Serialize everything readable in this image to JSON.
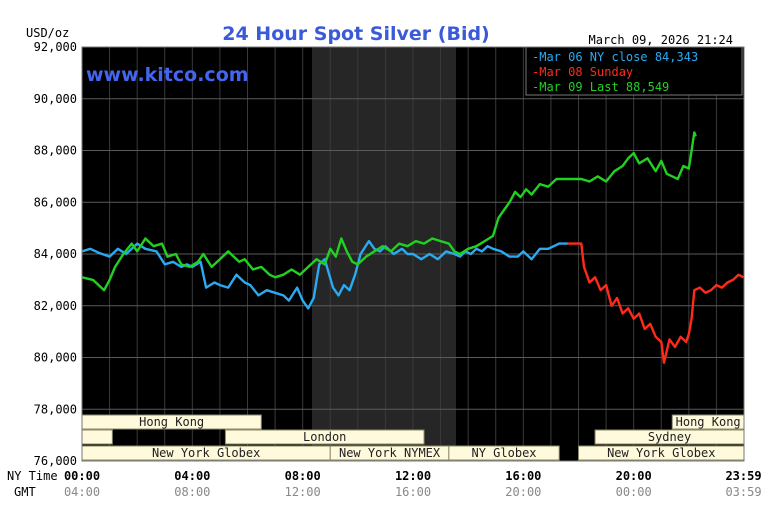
{
  "chart_data": {
    "type": "line",
    "title": "24 Hour Spot Silver (Bid)",
    "watermark": "www.kitco.com",
    "timestamp": "March 09, 2026 21:24",
    "unit_label": "USD/oz",
    "ylim": [
      76000,
      92000
    ],
    "y_ticks": [
      "92,000",
      "90,000",
      "88,000",
      "86,000",
      "84,000",
      "82,000",
      "80,000",
      "78,000",
      "76,000"
    ],
    "x_ticks_ny": [
      "00:00",
      "04:00",
      "08:00",
      "12:00",
      "16:00",
      "20:00",
      "23:59"
    ],
    "x_ticks_gmt": [
      "04:00",
      "08:00",
      "12:00",
      "16:00",
      "20:00",
      "00:00",
      "03:59"
    ],
    "x_row_labels": [
      "NY Time",
      "GMT"
    ],
    "grid": true,
    "legend_position": "top-right",
    "session_labels": [
      "Hong Kong",
      "London",
      "New York Globex",
      "New York NYMEX",
      "NY Globex",
      "Hong Kong",
      "Sydney",
      "New York Globex"
    ],
    "series": [
      {
        "name": "Mar 06 NY close 84,343",
        "color": "#2aaaf0",
        "points": [
          [
            0,
            84100
          ],
          [
            0.3,
            84200
          ],
          [
            0.6,
            84050
          ],
          [
            1.0,
            83900
          ],
          [
            1.3,
            84200
          ],
          [
            1.6,
            84000
          ],
          [
            2.0,
            84400
          ],
          [
            2.3,
            84200
          ],
          [
            2.7,
            84100
          ],
          [
            3.0,
            83600
          ],
          [
            3.3,
            83700
          ],
          [
            3.6,
            83500
          ],
          [
            3.8,
            83600
          ],
          [
            4.0,
            83500
          ],
          [
            4.3,
            83700
          ],
          [
            4.5,
            82700
          ],
          [
            4.8,
            82900
          ],
          [
            5.0,
            82800
          ],
          [
            5.3,
            82700
          ],
          [
            5.6,
            83200
          ],
          [
            5.9,
            82900
          ],
          [
            6.1,
            82800
          ],
          [
            6.4,
            82400
          ],
          [
            6.7,
            82600
          ],
          [
            7.0,
            82500
          ],
          [
            7.3,
            82400
          ],
          [
            7.5,
            82200
          ],
          [
            7.8,
            82700
          ],
          [
            8.0,
            82200
          ],
          [
            8.2,
            81900
          ],
          [
            8.4,
            82300
          ],
          [
            8.6,
            83600
          ],
          [
            8.8,
            83800
          ],
          [
            9.1,
            82700
          ],
          [
            9.3,
            82400
          ],
          [
            9.5,
            82800
          ],
          [
            9.7,
            82600
          ],
          [
            9.9,
            83200
          ],
          [
            10.1,
            84000
          ],
          [
            10.4,
            84500
          ],
          [
            10.6,
            84200
          ],
          [
            10.8,
            84100
          ],
          [
            11.0,
            84300
          ],
          [
            11.3,
            84000
          ],
          [
            11.6,
            84200
          ],
          [
            11.8,
            84000
          ],
          [
            12.0,
            84000
          ],
          [
            12.3,
            83800
          ],
          [
            12.6,
            84000
          ],
          [
            12.9,
            83800
          ],
          [
            13.2,
            84100
          ],
          [
            13.5,
            84000
          ],
          [
            13.7,
            83900
          ],
          [
            13.9,
            84100
          ],
          [
            14.1,
            84000
          ],
          [
            14.3,
            84200
          ],
          [
            14.5,
            84100
          ],
          [
            14.7,
            84300
          ],
          [
            14.9,
            84200
          ],
          [
            15.2,
            84100
          ],
          [
            15.5,
            83900
          ],
          [
            15.8,
            83900
          ],
          [
            16.0,
            84100
          ],
          [
            16.3,
            83800
          ],
          [
            16.6,
            84200
          ],
          [
            16.9,
            84200
          ],
          [
            17.1,
            84300
          ],
          [
            17.3,
            84400
          ],
          [
            17.6,
            84400
          ]
        ]
      },
      {
        "name": "Mar 08 Sunday",
        "color": "#ff2a1a",
        "points": [
          [
            17.6,
            84400
          ],
          [
            18.1,
            84400
          ],
          [
            18.2,
            83500
          ],
          [
            18.4,
            82900
          ],
          [
            18.6,
            83100
          ],
          [
            18.8,
            82600
          ],
          [
            19.0,
            82800
          ],
          [
            19.2,
            82000
          ],
          [
            19.4,
            82300
          ],
          [
            19.6,
            81700
          ],
          [
            19.8,
            81900
          ],
          [
            20.0,
            81500
          ],
          [
            20.2,
            81700
          ],
          [
            20.4,
            81100
          ],
          [
            20.6,
            81300
          ],
          [
            20.8,
            80800
          ],
          [
            21.0,
            80600
          ],
          [
            21.1,
            79800
          ],
          [
            21.3,
            80700
          ],
          [
            21.5,
            80400
          ],
          [
            21.7,
            80800
          ],
          [
            21.9,
            80600
          ],
          [
            22.0,
            80900
          ],
          [
            22.1,
            81500
          ],
          [
            22.2,
            82600
          ],
          [
            22.4,
            82700
          ],
          [
            22.6,
            82500
          ],
          [
            22.8,
            82600
          ],
          [
            23.0,
            82800
          ],
          [
            23.2,
            82700
          ],
          [
            23.4,
            82900
          ],
          [
            23.6,
            83000
          ],
          [
            23.8,
            83200
          ],
          [
            23.98,
            83100
          ]
        ]
      },
      {
        "name": "Mar 09 Last 88,549",
        "color": "#22d022",
        "points": [
          [
            0,
            83100
          ],
          [
            0.4,
            83000
          ],
          [
            0.8,
            82600
          ],
          [
            1.0,
            83000
          ],
          [
            1.2,
            83500
          ],
          [
            1.5,
            84000
          ],
          [
            1.8,
            84400
          ],
          [
            2.0,
            84100
          ],
          [
            2.3,
            84600
          ],
          [
            2.6,
            84300
          ],
          [
            2.9,
            84400
          ],
          [
            3.1,
            83900
          ],
          [
            3.4,
            84000
          ],
          [
            3.6,
            83600
          ],
          [
            3.9,
            83500
          ],
          [
            4.2,
            83700
          ],
          [
            4.4,
            84000
          ],
          [
            4.7,
            83500
          ],
          [
            5.0,
            83800
          ],
          [
            5.3,
            84100
          ],
          [
            5.5,
            83900
          ],
          [
            5.7,
            83700
          ],
          [
            5.9,
            83800
          ],
          [
            6.2,
            83400
          ],
          [
            6.5,
            83500
          ],
          [
            6.8,
            83200
          ],
          [
            7.0,
            83100
          ],
          [
            7.3,
            83200
          ],
          [
            7.6,
            83400
          ],
          [
            7.9,
            83200
          ],
          [
            8.2,
            83500
          ],
          [
            8.5,
            83800
          ],
          [
            8.8,
            83600
          ],
          [
            9.0,
            84200
          ],
          [
            9.2,
            83900
          ],
          [
            9.4,
            84600
          ],
          [
            9.6,
            84100
          ],
          [
            9.8,
            83700
          ],
          [
            10.0,
            83600
          ],
          [
            10.3,
            83900
          ],
          [
            10.6,
            84100
          ],
          [
            10.9,
            84300
          ],
          [
            11.2,
            84100
          ],
          [
            11.5,
            84400
          ],
          [
            11.8,
            84300
          ],
          [
            12.1,
            84500
          ],
          [
            12.4,
            84400
          ],
          [
            12.7,
            84600
          ],
          [
            13.0,
            84500
          ],
          [
            13.3,
            84400
          ],
          [
            13.5,
            84100
          ],
          [
            13.7,
            84000
          ],
          [
            14.0,
            84200
          ],
          [
            14.3,
            84300
          ],
          [
            14.6,
            84500
          ],
          [
            14.9,
            84700
          ],
          [
            15.1,
            85400
          ],
          [
            15.3,
            85700
          ],
          [
            15.5,
            86000
          ],
          [
            15.7,
            86400
          ],
          [
            15.9,
            86200
          ],
          [
            16.1,
            86500
          ],
          [
            16.3,
            86300
          ],
          [
            16.6,
            86700
          ],
          [
            16.9,
            86600
          ],
          [
            17.2,
            86900
          ],
          [
            17.5,
            86900
          ],
          [
            17.8,
            86900
          ],
          [
            18.1,
            86900
          ],
          [
            18.4,
            86800
          ],
          [
            18.7,
            87000
          ],
          [
            19.0,
            86800
          ],
          [
            19.3,
            87200
          ],
          [
            19.6,
            87400
          ],
          [
            19.8,
            87700
          ],
          [
            20.0,
            87900
          ],
          [
            20.2,
            87500
          ],
          [
            20.5,
            87700
          ],
          [
            20.8,
            87200
          ],
          [
            21.0,
            87600
          ],
          [
            21.2,
            87100
          ],
          [
            21.4,
            87000
          ],
          [
            21.6,
            86900
          ],
          [
            21.8,
            87400
          ],
          [
            22.0,
            87300
          ],
          [
            22.1,
            88000
          ],
          [
            22.2,
            88700
          ],
          [
            22.25,
            88549
          ]
        ]
      }
    ]
  }
}
